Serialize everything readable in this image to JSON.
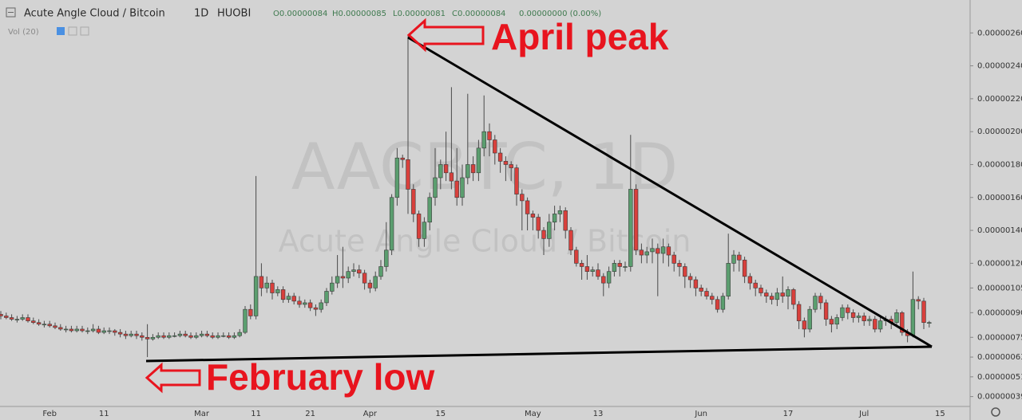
{
  "header": {
    "symbol": "Acute Angle Cloud / Bitcoin",
    "interval": "1D",
    "exchange": "HUOBI",
    "open": "O0.00000084",
    "high": "H0.00000085",
    "low": "L0.00000081",
    "close": "C0.00000084",
    "change": "0.00000000 (0.00%)",
    "volume_label": "Vol (20)"
  },
  "chart_data": {
    "type": "candlestick",
    "watermark": "AACBTC, 1D",
    "watermark_subtitle": "Acute Angle Cloud / Bitcoin",
    "annotations": [
      "April peak",
      "February low"
    ],
    "up_color": "#5b9e6f",
    "down_color": "#d8403c",
    "categories": [
      null,
      null,
      null,
      null,
      null,
      null,
      null,
      null,
      null,
      "Feb",
      null,
      null,
      null,
      null,
      null,
      null,
      null,
      null,
      null,
      "11",
      null,
      null,
      null,
      null,
      null,
      null,
      null,
      null,
      null,
      null,
      null,
      null,
      null,
      null,
      null,
      null,
      null,
      "Mar",
      null,
      null,
      null,
      null,
      null,
      null,
      null,
      null,
      null,
      "11",
      null,
      null,
      null,
      null,
      null,
      null,
      null,
      null,
      null,
      "21",
      null,
      null,
      null,
      null,
      null,
      null,
      null,
      null,
      null,
      null,
      "Apr",
      null,
      null,
      null,
      null,
      null,
      null,
      null,
      null,
      null,
      null,
      null,
      null,
      "15",
      null,
      null,
      null,
      null,
      null,
      null,
      null,
      null,
      null,
      null,
      null,
      null,
      null,
      null,
      null,
      null,
      "May",
      null,
      null,
      null,
      null,
      null,
      null,
      null,
      null,
      null,
      null,
      null,
      "13",
      null,
      null,
      null,
      null,
      null,
      null,
      null,
      null,
      null,
      null,
      null,
      null,
      null,
      null,
      null,
      null,
      null,
      null,
      "Jun",
      null,
      null,
      null,
      null,
      null,
      null,
      null,
      null,
      null,
      null,
      null,
      null,
      null,
      null,
      null,
      "17",
      null,
      null,
      null,
      null,
      null,
      null,
      null,
      null,
      null,
      null,
      null,
      null,
      null,
      "Jul",
      null,
      null,
      null,
      null,
      null,
      null,
      null,
      null,
      null,
      null,
      null,
      null,
      null,
      "15"
    ],
    "open": [
      8.9e-07,
      8.8e-07,
      8.7e-07,
      8.6e-07,
      8.6e-07,
      8.7e-07,
      8.5e-07,
      8.4e-07,
      8.3e-07,
      8.3e-07,
      8.2e-07,
      8.1e-07,
      8e-07,
      8e-07,
      7.9e-07,
      8e-07,
      7.9e-07,
      7.9e-07,
      8e-07,
      7.8e-07,
      7.9e-07,
      7.9e-07,
      7.8e-07,
      7.7e-07,
      7.6e-07,
      7.7e-07,
      7.6e-07,
      7.5e-07,
      7.4e-07,
      7.5e-07,
      7.6e-07,
      7.5e-07,
      7.6e-07,
      7.6e-07,
      7.7e-07,
      7.6e-07,
      7.5e-07,
      7.6e-07,
      7.7e-07,
      7.6e-07,
      7.5e-07,
      7.6e-07,
      7.6e-07,
      7.5e-07,
      7.6e-07,
      7.8e-07,
      9.2e-07,
      8.8e-07,
      1.12e-06,
      1.05e-06,
      1.08e-06,
      1.02e-06,
      1.04e-06,
      9.8e-07,
      1e-06,
      9.7e-07,
      9.5e-07,
      9.6e-07,
      9.3e-07,
      9.2e-07,
      9.6e-07,
      1.03e-06,
      1.08e-06,
      1.12e-06,
      1.11e-06,
      1.15e-06,
      1.16e-06,
      1.14e-06,
      1.08e-06,
      1.05e-06,
      1.12e-06,
      1.18e-06,
      1.28e-06,
      1.6e-06,
      1.84e-06,
      1.83e-06,
      1.65e-06,
      1.5e-06,
      1.35e-06,
      1.45e-06,
      1.6e-06,
      1.72e-06,
      1.8e-06,
      1.75e-06,
      1.7e-06,
      1.6e-06,
      1.72e-06,
      1.8e-06,
      1.75e-06,
      1.9e-06,
      2e-06,
      1.95e-06,
      1.87e-06,
      1.82e-06,
      1.8e-06,
      1.78e-06,
      1.62e-06,
      1.58e-06,
      1.5e-06,
      1.48e-06,
      1.4e-06,
      1.35e-06,
      1.45e-06,
      1.5e-06,
      1.52e-06,
      1.4e-06,
      1.28e-06,
      1.2e-06,
      1.18e-06,
      1.15e-06,
      1.16e-06,
      1.12e-06,
      1.08e-06,
      1.15e-06,
      1.2e-06,
      1.18e-06,
      1.18e-06,
      1.65e-06,
      1.28e-06,
      1.25e-06,
      1.27e-06,
      1.29e-06,
      1.26e-06,
      1.3e-06,
      1.25e-06,
      1.2e-06,
      1.18e-06,
      1.12e-06,
      1.1e-06,
      1.05e-06,
      1.03e-06,
      1e-06,
      9.8e-07,
      9.2e-07,
      1e-06,
      1.2e-06,
      1.25e-06,
      1.22e-06,
      1.12e-06,
      1.08e-06,
      1.05e-06,
      1.02e-06,
      1e-06,
      9.8e-07,
      1.02e-06,
      1e-06,
      1.04e-06,
      9.5e-07,
      8.5e-07,
      8e-07,
      9.2e-07,
      1e-06,
      9.6e-07,
      8.6e-07,
      8.3e-07,
      8.7e-07,
      9.3e-07,
      9e-07,
      8.7e-07,
      8.8e-07,
      8.5e-07,
      8.6e-07,
      8e-07,
      8.5e-07,
      8.6e-07,
      8.4e-07,
      9e-07,
      7.8e-07,
      7.6e-07,
      9.8e-07,
      9.7e-07,
      8.4e-07,
      null,
      null
    ],
    "high": [
      9.1e-07,
      9e-07,
      8.9e-07,
      8.8e-07,
      8.9e-07,
      8.9e-07,
      8.7e-07,
      8.6e-07,
      8.5e-07,
      8.5e-07,
      8.4e-07,
      8.3e-07,
      8.2e-07,
      8.2e-07,
      8.2e-07,
      8.2e-07,
      8.1e-07,
      8.3e-07,
      8.2e-07,
      8.1e-07,
      8.1e-07,
      8e-07,
      8e-07,
      7.9e-07,
      7.9e-07,
      7.9e-07,
      7.8e-07,
      8.3e-07,
      7.7e-07,
      7.8e-07,
      7.8e-07,
      7.8e-07,
      7.8e-07,
      7.9e-07,
      7.9e-07,
      7.8e-07,
      7.8e-07,
      7.9e-07,
      7.9e-07,
      7.8e-07,
      7.8e-07,
      7.8e-07,
      7.8e-07,
      7.8e-07,
      8e-07,
      9.4e-07,
      9.5e-07,
      1.73e-06,
      1.2e-06,
      1.12e-06,
      1.1e-06,
      1.06e-06,
      1.06e-06,
      1.02e-06,
      1.02e-06,
      1e-06,
      9.8e-07,
      9.8e-07,
      9.5e-07,
      9.8e-07,
      1.05e-06,
      1.12e-06,
      1.25e-06,
      1.3e-06,
      1.18e-06,
      1.2e-06,
      1.19e-06,
      1.16e-06,
      1.1e-06,
      1.15e-06,
      1.22e-06,
      1.45e-06,
      1.62e-06,
      1.9e-06,
      1.86e-06,
      2.58e-06,
      1.68e-06,
      1.52e-06,
      1.48e-06,
      1.63e-06,
      1.9e-06,
      1.83e-06,
      2e-06,
      2.27e-06,
      1.9e-06,
      1.8e-06,
      2.23e-06,
      1.85e-06,
      1.95e-06,
      2.22e-06,
      2.05e-06,
      1.98e-06,
      1.9e-06,
      1.85e-06,
      1.82e-06,
      1.8e-06,
      1.65e-06,
      1.6e-06,
      1.52e-06,
      1.5e-06,
      1.42e-06,
      1.5e-06,
      1.55e-06,
      1.55e-06,
      1.54e-06,
      1.42e-06,
      1.3e-06,
      1.22e-06,
      1.25e-06,
      1.18e-06,
      1.2e-06,
      1.14e-06,
      1.18e-06,
      1.22e-06,
      1.22e-06,
      1.21e-06,
      1.98e-06,
      1.68e-06,
      1.32e-06,
      1.3e-06,
      1.35e-06,
      1.32e-06,
      1.35e-06,
      1.32e-06,
      1.27e-06,
      1.22e-06,
      1.2e-06,
      1.14e-06,
      1.12e-06,
      1.07e-06,
      1.05e-06,
      1.02e-06,
      1e-06,
      1.02e-06,
      1.38e-06,
      1.28e-06,
      1.27e-06,
      1.24e-06,
      1.14e-06,
      1.1e-06,
      1.07e-06,
      1.04e-06,
      1.02e-06,
      1.05e-06,
      1.12e-06,
      1.06e-06,
      1.05e-06,
      9.7e-07,
      8.7e-07,
      9.4e-07,
      1.02e-06,
      1.02e-06,
      9.8e-07,
      8.8e-07,
      8.9e-07,
      9.5e-07,
      9.5e-07,
      9.2e-07,
      9e-07,
      9e-07,
      8.8e-07,
      8.8e-07,
      8.7e-07,
      8.8e-07,
      8.8e-07,
      9.2e-07,
      9.1e-07,
      8e-07,
      1.15e-06,
      1e-06,
      9.9e-07,
      8.5e-07,
      null,
      null
    ],
    "low": [
      8.6e-07,
      8.6e-07,
      8.5e-07,
      8.4e-07,
      8.5e-07,
      8.4e-07,
      8.3e-07,
      8.2e-07,
      8.1e-07,
      8.1e-07,
      8e-07,
      7.9e-07,
      7.8e-07,
      7.8e-07,
      7.8e-07,
      7.8e-07,
      7.7e-07,
      7.8e-07,
      7.7e-07,
      7.7e-07,
      7.7e-07,
      7.6e-07,
      7.5e-07,
      7.4e-07,
      7.5e-07,
      7.4e-07,
      7.3e-07,
      6.3e-07,
      7.3e-07,
      7.4e-07,
      7.4e-07,
      7.4e-07,
      7.5e-07,
      7.5e-07,
      7.5e-07,
      7.4e-07,
      7.4e-07,
      7.5e-07,
      7.5e-07,
      7.4e-07,
      7.4e-07,
      7.5e-07,
      7.4e-07,
      7.4e-07,
      7.5e-07,
      7.7e-07,
      8.6e-07,
      8.6e-07,
      1e-06,
      1.02e-06,
      9.8e-07,
      1e-06,
      9.6e-07,
      9.6e-07,
      9.5e-07,
      9.3e-07,
      9.3e-07,
      9.1e-07,
      8.8e-07,
      9e-07,
      9.4e-07,
      1.01e-06,
      1.05e-06,
      1.05e-06,
      1.08e-06,
      1.12e-06,
      1.11e-06,
      1.04e-06,
      1.02e-06,
      1.03e-06,
      1.1e-06,
      1.15e-06,
      1.25e-06,
      1.55e-06,
      1.78e-06,
      1.5e-06,
      1.45e-06,
      1.3e-06,
      1.3e-06,
      1.4e-06,
      1.55e-06,
      1.65e-06,
      1.7e-06,
      1.65e-06,
      1.55e-06,
      1.55e-06,
      1.68e-06,
      1.7e-06,
      1.7e-06,
      1.85e-06,
      1.85e-06,
      1.8e-06,
      1.75e-06,
      1.7e-06,
      1.7e-06,
      1.55e-06,
      1.4e-06,
      1.4e-06,
      1.4e-06,
      1.35e-06,
      1.25e-06,
      1.3e-06,
      1.4e-06,
      1.45e-06,
      1.35e-06,
      1.25e-06,
      1.18e-06,
      1.1e-06,
      1.1e-06,
      1.12e-06,
      1.1e-06,
      1e-06,
      1.05e-06,
      1.12e-06,
      1.12e-06,
      1.15e-06,
      1.15e-06,
      1.25e-06,
      1.2e-06,
      1.2e-06,
      1.2e-06,
      1e-06,
      1.2e-06,
      1.18e-06,
      1.15e-06,
      1.12e-06,
      1.05e-06,
      1.05e-06,
      1e-06,
      1e-06,
      9.8e-07,
      9.5e-07,
      9e-07,
      9e-07,
      9.8e-07,
      1.15e-06,
      1.15e-06,
      1.08e-06,
      1.04e-06,
      1e-06,
      1e-06,
      9.6e-07,
      9.5e-07,
      9.4e-07,
      9.6e-07,
      9.2e-07,
      9.2e-07,
      8e-07,
      7.5e-07,
      7.8e-07,
      9e-07,
      9.2e-07,
      8.2e-07,
      7.8e-07,
      8e-07,
      8.5e-07,
      8.6e-07,
      8.4e-07,
      8.4e-07,
      8.2e-07,
      8.2e-07,
      7.8e-07,
      7.8e-07,
      8.2e-07,
      8e-07,
      8.2e-07,
      7.6e-07,
      7.2e-07,
      7.5e-07,
      9.2e-07,
      8e-07,
      8.1e-07,
      null,
      null
    ],
    "close": [
      8.8e-07,
      8.7e-07,
      8.6e-07,
      8.6e-07,
      8.7e-07,
      8.5e-07,
      8.4e-07,
      8.3e-07,
      8.3e-07,
      8.2e-07,
      8.1e-07,
      8e-07,
      8e-07,
      7.9e-07,
      8e-07,
      7.9e-07,
      7.9e-07,
      8e-07,
      7.8e-07,
      7.9e-07,
      7.9e-07,
      7.8e-07,
      7.7e-07,
      7.6e-07,
      7.7e-07,
      7.6e-07,
      7.5e-07,
      7.4e-07,
      7.5e-07,
      7.6e-07,
      7.5e-07,
      7.6e-07,
      7.6e-07,
      7.7e-07,
      7.6e-07,
      7.5e-07,
      7.6e-07,
      7.7e-07,
      7.6e-07,
      7.5e-07,
      7.6e-07,
      7.6e-07,
      7.5e-07,
      7.6e-07,
      7.8e-07,
      9.2e-07,
      8.8e-07,
      1.12e-06,
      1.05e-06,
      1.08e-06,
      1.02e-06,
      1.04e-06,
      9.8e-07,
      1e-06,
      9.7e-07,
      9.5e-07,
      9.6e-07,
      9.3e-07,
      9.2e-07,
      9.6e-07,
      1.03e-06,
      1.08e-06,
      1.12e-06,
      1.11e-06,
      1.15e-06,
      1.16e-06,
      1.14e-06,
      1.08e-06,
      1.05e-06,
      1.12e-06,
      1.18e-06,
      1.28e-06,
      1.6e-06,
      1.84e-06,
      1.83e-06,
      1.65e-06,
      1.5e-06,
      1.35e-06,
      1.45e-06,
      1.6e-06,
      1.72e-06,
      1.8e-06,
      1.75e-06,
      1.7e-06,
      1.6e-06,
      1.72e-06,
      1.8e-06,
      1.75e-06,
      1.9e-06,
      2e-06,
      1.95e-06,
      1.87e-06,
      1.82e-06,
      1.8e-06,
      1.78e-06,
      1.62e-06,
      1.58e-06,
      1.5e-06,
      1.48e-06,
      1.4e-06,
      1.35e-06,
      1.45e-06,
      1.5e-06,
      1.52e-06,
      1.4e-06,
      1.28e-06,
      1.2e-06,
      1.18e-06,
      1.15e-06,
      1.16e-06,
      1.12e-06,
      1.08e-06,
      1.15e-06,
      1.2e-06,
      1.18e-06,
      1.18e-06,
      1.65e-06,
      1.28e-06,
      1.25e-06,
      1.27e-06,
      1.29e-06,
      1.26e-06,
      1.3e-06,
      1.25e-06,
      1.2e-06,
      1.18e-06,
      1.12e-06,
      1.1e-06,
      1.05e-06,
      1.03e-06,
      1e-06,
      9.8e-07,
      9.2e-07,
      1e-06,
      1.2e-06,
      1.25e-06,
      1.22e-06,
      1.12e-06,
      1.08e-06,
      1.05e-06,
      1.02e-06,
      1e-06,
      9.8e-07,
      1.02e-06,
      1e-06,
      1.04e-06,
      9.5e-07,
      8.5e-07,
      8e-07,
      9.2e-07,
      1e-06,
      9.6e-07,
      8.6e-07,
      8.3e-07,
      8.7e-07,
      9.3e-07,
      9e-07,
      8.7e-07,
      8.8e-07,
      8.5e-07,
      8.6e-07,
      8e-07,
      8.5e-07,
      8.6e-07,
      8.4e-07,
      9e-07,
      7.8e-07,
      7.6e-07,
      9.8e-07,
      9.7e-07,
      8.4e-07,
      8.4e-07,
      null,
      null
    ],
    "ylim": [
      3.3e-07,
      2.8e-06
    ],
    "yticks": [
      {
        "value": 2.6e-06,
        "label": "0.00000260"
      },
      {
        "value": 2.4e-06,
        "label": "0.00000240"
      },
      {
        "value": 2.2e-06,
        "label": "0.00000220"
      },
      {
        "value": 2e-06,
        "label": "0.00000200"
      },
      {
        "value": 1.8e-06,
        "label": "0.00000180"
      },
      {
        "value": 1.6e-06,
        "label": "0.00000160"
      },
      {
        "value": 1.4e-06,
        "label": "0.00000140"
      },
      {
        "value": 1.2e-06,
        "label": "0.00000120"
      },
      {
        "value": 1.05e-06,
        "label": "0.00000105"
      },
      {
        "value": 9e-07,
        "label": "0.00000090"
      },
      {
        "value": 7.5e-07,
        "label": "0.00000075"
      },
      {
        "value": 6.3e-07,
        "label": "0.00000063"
      },
      {
        "value": 5.1e-07,
        "label": "0.00000051"
      },
      {
        "value": 3.9e-07,
        "label": "0.00000039"
      }
    ],
    "grid": false
  }
}
